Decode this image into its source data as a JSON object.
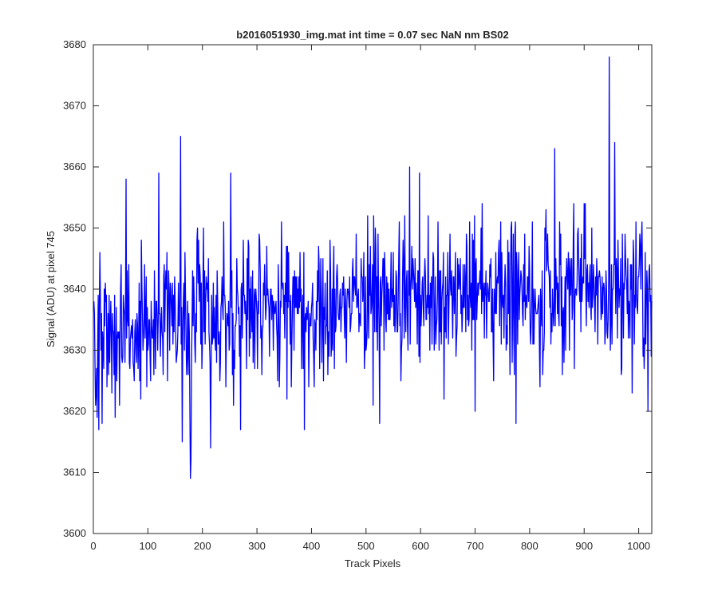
{
  "chart_data": {
    "type": "line",
    "title": "b2016051930_img.mat int time = 0.07 sec  NaN nm BS02",
    "xlabel": "Track Pixels",
    "ylabel": "Signal (ADU) at pixel 745",
    "xlim": [
      0,
      1024
    ],
    "ylim": [
      3600,
      3680
    ],
    "xticks": [
      0,
      100,
      200,
      300,
      400,
      500,
      600,
      700,
      800,
      900,
      1000
    ],
    "yticks": [
      3600,
      3610,
      3620,
      3630,
      3640,
      3650,
      3660,
      3670,
      3680
    ],
    "grid": false,
    "noise_seed": 20160519,
    "baseline": [
      [
        0,
        3633
      ],
      [
        150,
        3635
      ],
      [
        400,
        3637
      ],
      [
        550,
        3639
      ],
      [
        700,
        3639
      ],
      [
        900,
        3640
      ],
      [
        1024,
        3638
      ]
    ],
    "noise_amplitude": 6,
    "series": [
      {
        "color": "#0000ff",
        "values": [
          [
            160,
            3665
          ],
          [
            178,
            3609
          ],
          [
            179,
            3612
          ],
          [
            120,
            3659
          ],
          [
            215,
            3614
          ],
          [
            252,
            3659
          ],
          [
            387,
            3617
          ],
          [
            580,
            3660
          ],
          [
            598,
            3659
          ],
          [
            846,
            3663
          ],
          [
            946,
            3678
          ],
          [
            956,
            3664
          ],
          [
            270,
            3617
          ],
          [
            163,
            3615
          ],
          [
            525,
            3618
          ],
          [
            643,
            3622
          ],
          [
            775,
            3618
          ],
          [
            860,
            3626
          ],
          [
            1006,
            3651
          ],
          [
            1010,
            3627
          ],
          [
            10,
            3617
          ],
          [
            16,
            3618
          ],
          [
            60,
            3658
          ],
          [
            700,
            3620
          ],
          [
            900,
            3654
          ]
        ]
      }
    ]
  }
}
